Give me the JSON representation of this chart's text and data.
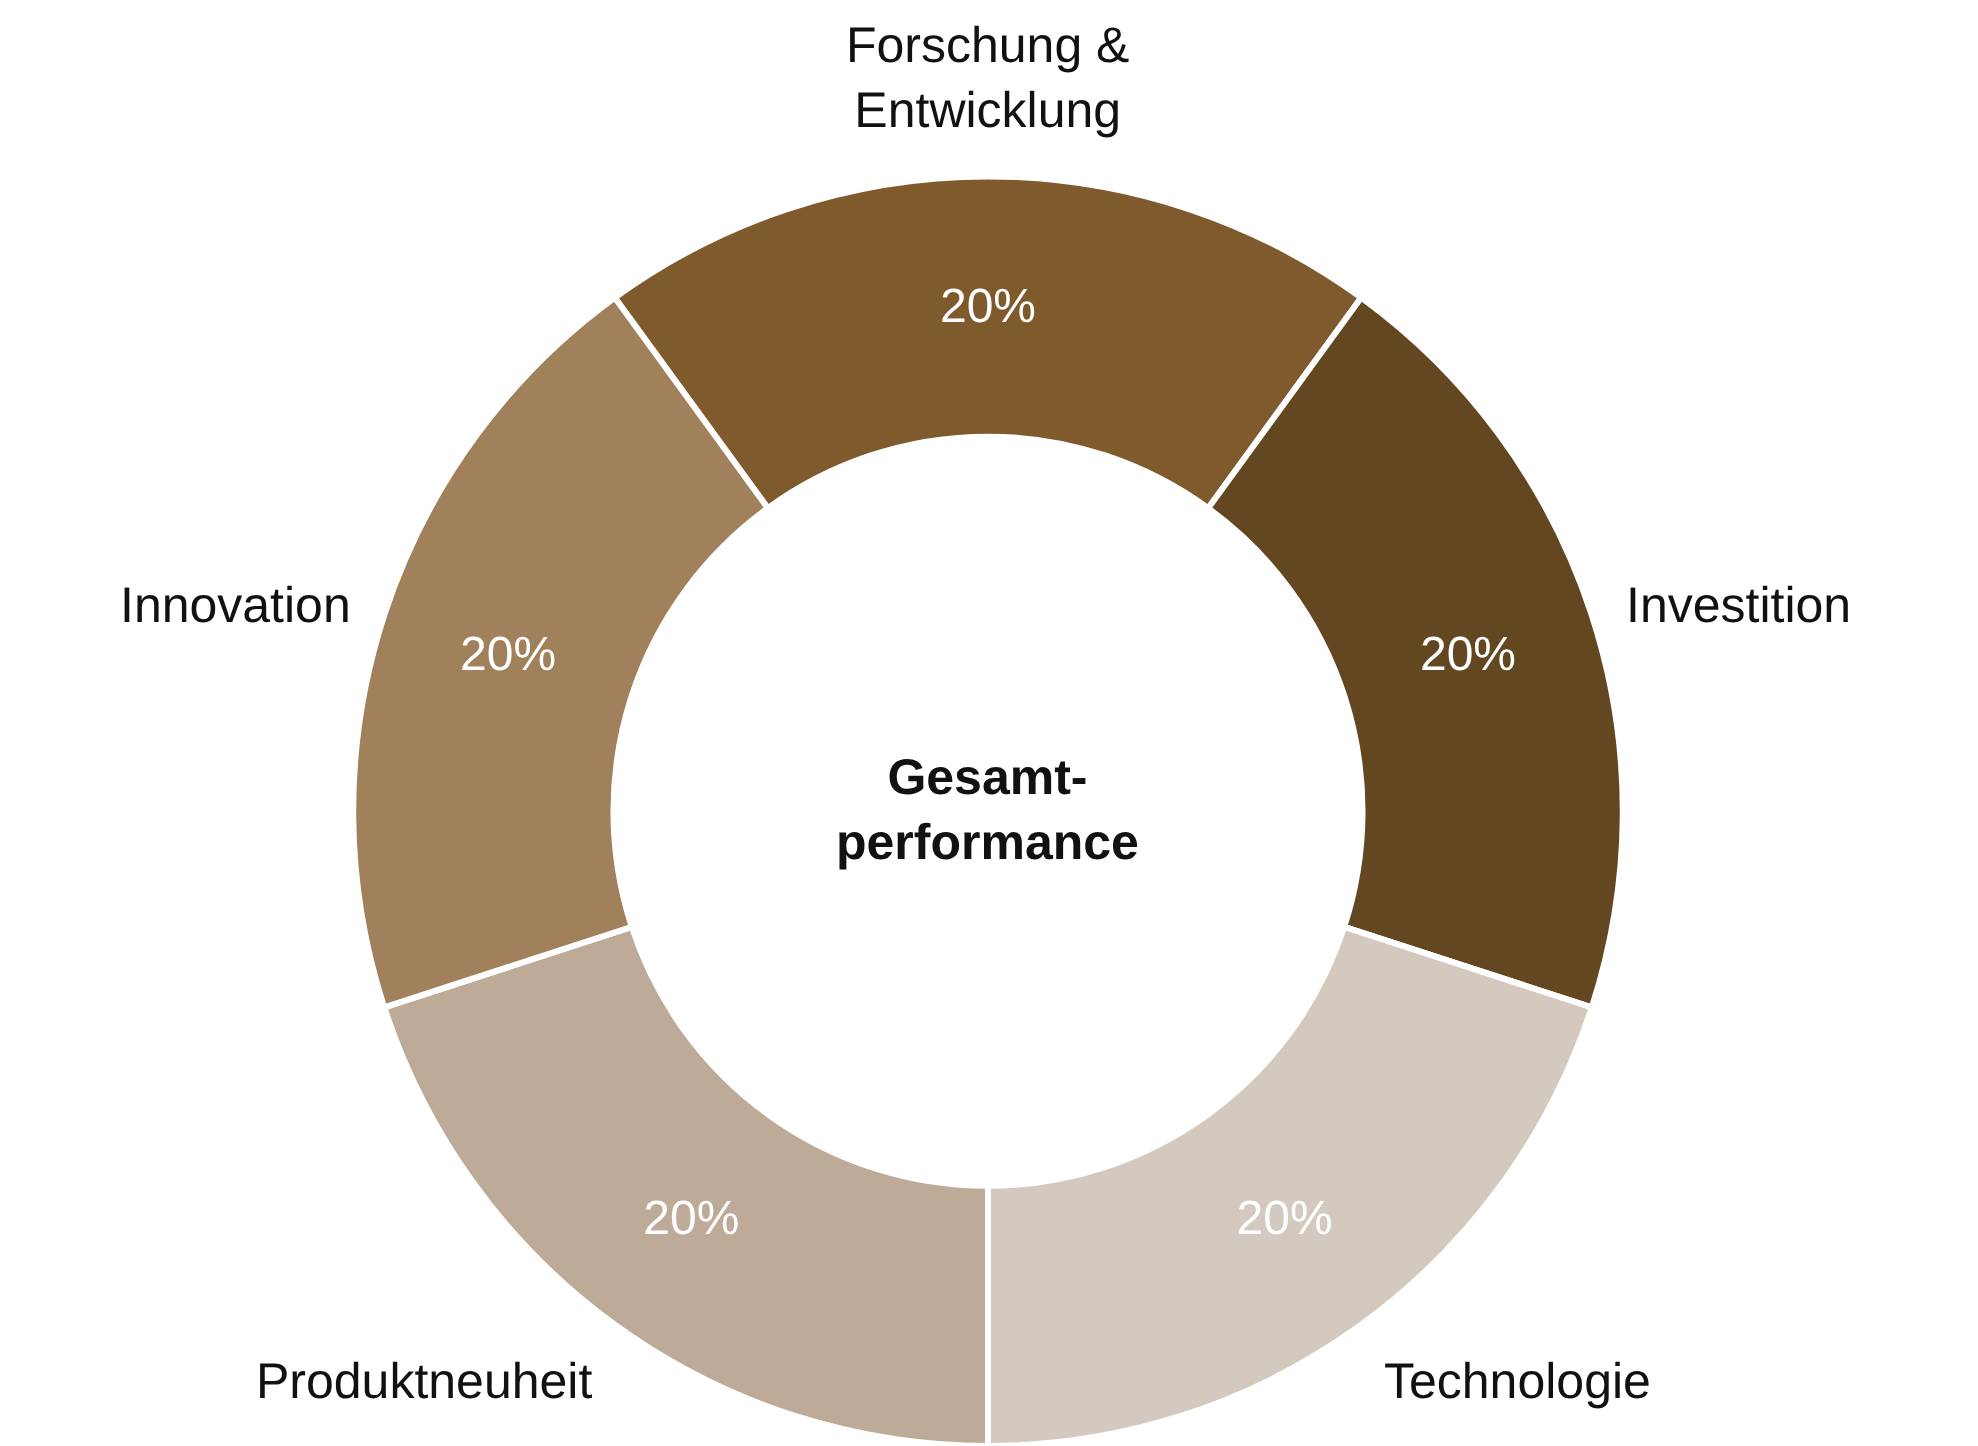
{
  "chart_data": {
    "type": "donut",
    "categories": [
      "Forschung & Entwicklung",
      "Investition",
      "Technologie",
      "Produktneuheit",
      "Innovation"
    ],
    "values": [
      20,
      20,
      20,
      20,
      20
    ],
    "value_labels": [
      "20%",
      "20%",
      "20%",
      "20%",
      "20%"
    ],
    "colors": [
      "#7f5a2c",
      "#634720",
      "#d3c9be",
      "#bdab98",
      "#a0815c"
    ],
    "annotations": [
      "Gesamt-\nperformance"
    ],
    "legend": false
  }
}
